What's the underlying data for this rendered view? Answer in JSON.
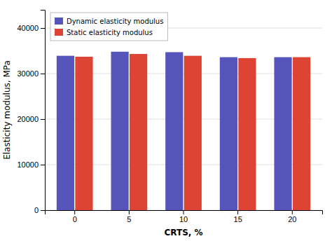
{
  "chart_data": {
    "type": "bar",
    "categories": [
      "0",
      "5",
      "10",
      "15",
      "20"
    ],
    "series": [
      {
        "name": "Dynamic elasticity modulus",
        "color": "#5555BB",
        "values": [
          33900,
          34800,
          34700,
          33600,
          33600
        ]
      },
      {
        "name": "Static elasticity modulus",
        "color": "#DD4433",
        "values": [
          33700,
          34300,
          33900,
          33400,
          33600
        ]
      }
    ],
    "xlabel": "CRTS, %",
    "ylabel": "Elasticity modulus, MPa",
    "ylim": [
      0,
      44000
    ],
    "yticks": [
      0,
      10000,
      20000,
      30000,
      40000
    ],
    "grid": true,
    "legend": "upper-left"
  }
}
